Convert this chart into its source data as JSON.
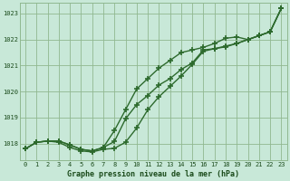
{
  "title": "Graphe pression niveau de la mer (hPa)",
  "xlabel": "Graphe pression niveau de la mer (hPa)",
  "hours": [
    0,
    1,
    2,
    3,
    4,
    5,
    6,
    7,
    8,
    9,
    10,
    11,
    12,
    13,
    14,
    15,
    16,
    17,
    18,
    19,
    20,
    21,
    22,
    23
  ],
  "line1": [
    1017.8,
    1018.05,
    1018.1,
    1018.1,
    1017.95,
    1017.78,
    1017.72,
    1017.85,
    1018.08,
    1018.95,
    1019.5,
    1019.85,
    1020.25,
    1020.5,
    1020.85,
    1021.1,
    1021.6,
    1021.65,
    1021.75,
    1021.85,
    1022.0,
    1022.15,
    1022.3,
    1023.2
  ],
  "line2": [
    1017.8,
    1018.05,
    1018.1,
    1018.05,
    1017.85,
    1017.72,
    1017.68,
    1017.78,
    1017.82,
    1018.05,
    1018.6,
    1019.3,
    1019.8,
    1020.2,
    1020.6,
    1021.05,
    1021.55,
    1021.65,
    1021.72,
    1021.85,
    1022.0,
    1022.15,
    1022.3,
    1023.2
  ],
  "line3": [
    1017.8,
    1018.05,
    1018.1,
    1018.1,
    1017.95,
    1017.78,
    1017.72,
    1017.85,
    1018.5,
    1019.3,
    1020.1,
    1020.5,
    1020.9,
    1021.2,
    1021.5,
    1021.6,
    1021.7,
    1021.85,
    1022.05,
    1022.1,
    1022.0,
    1022.15,
    1022.3,
    1023.2
  ],
  "line_color": "#2d6a2d",
  "bg_color": "#c8e8d8",
  "grid_color": "#90b890",
  "text_color": "#1a4a1a",
  "ylim": [
    1017.35,
    1023.4
  ],
  "yticks": [
    1018,
    1019,
    1020,
    1021,
    1022,
    1023
  ],
  "xticks": [
    0,
    1,
    2,
    3,
    4,
    5,
    6,
    7,
    8,
    9,
    10,
    11,
    12,
    13,
    14,
    15,
    16,
    17,
    18,
    19,
    20,
    21,
    22,
    23
  ],
  "marker": "+",
  "marker_size": 4,
  "marker_ew": 1.2,
  "line_width": 1.0
}
